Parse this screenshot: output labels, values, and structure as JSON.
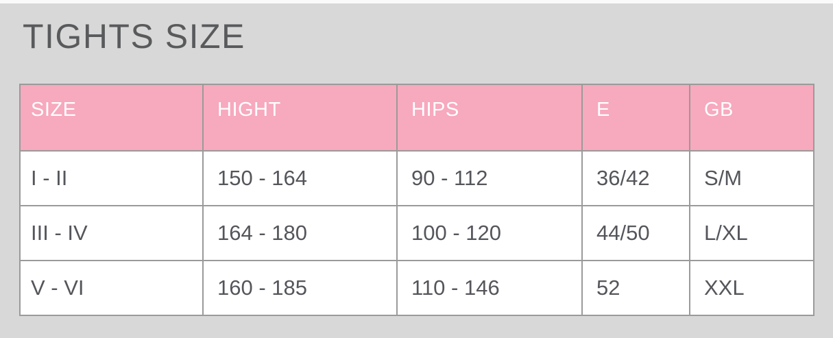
{
  "page": {
    "title": "TIGHTS SIZE"
  },
  "chart_data": {
    "type": "table",
    "title": "TIGHTS SIZE",
    "columns": [
      "SIZE",
      "HIGHT",
      "HIPS",
      "E",
      "GB"
    ],
    "rows": [
      [
        "I - II",
        "150 - 164",
        "90 - 112",
        "36/42",
        "S/M"
      ],
      [
        "III - IV",
        "164 - 180",
        "100 - 120",
        "44/50",
        "L/XL"
      ],
      [
        "V - VI",
        "160 - 185",
        "110 - 146",
        "52",
        "XXL"
      ]
    ]
  },
  "colors": {
    "background": "#d8d8d8",
    "header_bg": "#f7a9be",
    "header_text": "#ffffff",
    "cell_bg": "#ffffff",
    "body_text": "#54565b",
    "border": "#9a9a9a",
    "title_text": "#595a5c"
  }
}
